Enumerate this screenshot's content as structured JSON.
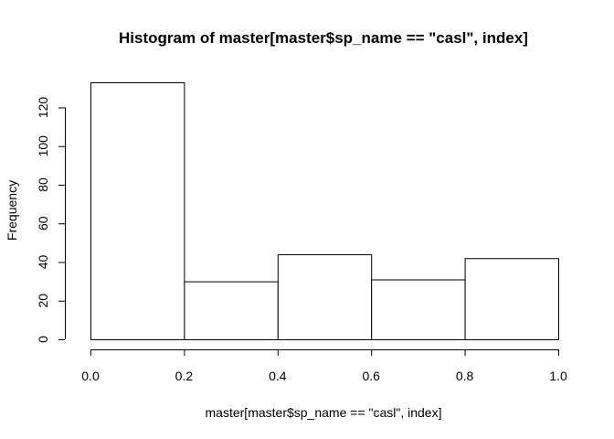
{
  "chart_data": {
    "type": "bar",
    "title": "Histogram of master[master$sp_name == \"casl\", index]",
    "xlabel": "master[master$sp_name == \"casl\", index]",
    "ylabel": "Frequency",
    "bins": [
      [
        0.0,
        0.2
      ],
      [
        0.2,
        0.4
      ],
      [
        0.4,
        0.6
      ],
      [
        0.6,
        0.8
      ],
      [
        0.8,
        1.0
      ]
    ],
    "values": [
      133,
      30,
      44,
      31,
      42
    ],
    "xlim": [
      0.0,
      1.0
    ],
    "ylim": [
      0,
      133
    ],
    "xticks": [
      "0.0",
      "0.2",
      "0.4",
      "0.6",
      "0.8",
      "1.0"
    ],
    "yticks": [
      "0",
      "20",
      "40",
      "60",
      "80",
      "100",
      "120"
    ],
    "grid": false,
    "bar_fill": "#ffffff",
    "bar_stroke": "#000000"
  }
}
